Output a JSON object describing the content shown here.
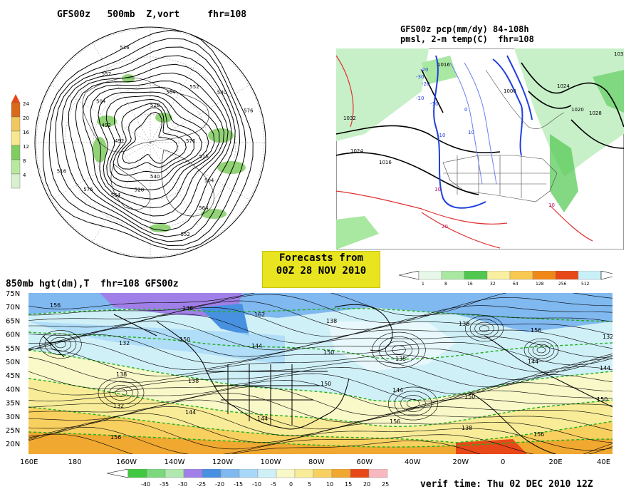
{
  "panels": {
    "polar": {
      "title": "GFS00z   500mb  Z,vort     fhr=108",
      "contour_labels": [
        "576",
        "516",
        "504",
        "564",
        "552",
        "540",
        "528",
        "564",
        "576",
        "516",
        "492",
        "492",
        "504",
        "552",
        "516",
        "528",
        "564",
        "552",
        "540",
        "576"
      ],
      "colorbar": {
        "labels": [
          "24",
          "20",
          "16",
          "12",
          "8",
          "4"
        ],
        "colors": [
          "#d86a1a",
          "#f0c860",
          "#f7e890",
          "#80cc60",
          "#b8e8a0",
          "#d8f0d0"
        ]
      }
    },
    "precip": {
      "title_line1": "GFS00z pcp(mm/dy) 84-108h",
      "title_line2": "pmsl, 2-m temp(C)  fhr=108",
      "labels_black": [
        "1016",
        "1032",
        "1024",
        "1016",
        "1000",
        "1024",
        "1020",
        "1028",
        "1032"
      ],
      "labels_blue": [
        "-20",
        "-30",
        "-20",
        "-10",
        "-10",
        "0",
        "10",
        "-10"
      ],
      "labels_red": [
        "10",
        "10",
        "20"
      ],
      "colorbar": {
        "labels": [
          "1",
          "8",
          "16",
          "32",
          "64",
          "128",
          "256",
          "512"
        ],
        "colors": [
          "#e8f8e8",
          "#a8e8a0",
          "#50c850",
          "#f8f0a0",
          "#f8c850",
          "#f08818",
          "#e84818",
          "#c8f0f8"
        ]
      }
    },
    "forecast": {
      "line1": "Forecasts from",
      "line2": "00Z 28 NOV 2010"
    },
    "main": {
      "title": "850mb hgt(dm),T  fhr=108 GFS00z",
      "lat_labels": [
        "75N",
        "70N",
        "65N",
        "60N",
        "55N",
        "50N",
        "45N",
        "40N",
        "35N",
        "30N",
        "25N",
        "20N"
      ],
      "lon_labels": [
        "160E",
        "180",
        "160W",
        "140W",
        "120W",
        "100W",
        "80W",
        "60W",
        "40W",
        "20W",
        "0",
        "20E",
        "40E"
      ],
      "contour_labels": [
        "156",
        "132",
        "138",
        "144",
        "138",
        "135",
        "150",
        "156",
        "132",
        "138",
        "144",
        "162",
        "150",
        "144",
        "138",
        "156",
        "144",
        "132",
        "136",
        "144",
        "150",
        "156",
        "138",
        "144",
        "150",
        "156",
        "150"
      ],
      "colorbar": {
        "labels": [
          "-40",
          "-35",
          "-30",
          "-25",
          "-20",
          "-15",
          "-10",
          "-5",
          "0",
          "5",
          "10",
          "15",
          "20",
          "25"
        ],
        "colors": [
          "#40c840",
          "#7cd87c",
          "#b0e8b0",
          "#a080e8",
          "#4890e0",
          "#80b8f0",
          "#a8d8f8",
          "#d0f0f8",
          "#f8f8c8",
          "#f8ec98",
          "#f8d060",
          "#f0a830",
          "#e84818",
          "#f8b8c0"
        ]
      },
      "verif_time": "verif time: Thu 02 DEC 2010 12Z"
    }
  }
}
